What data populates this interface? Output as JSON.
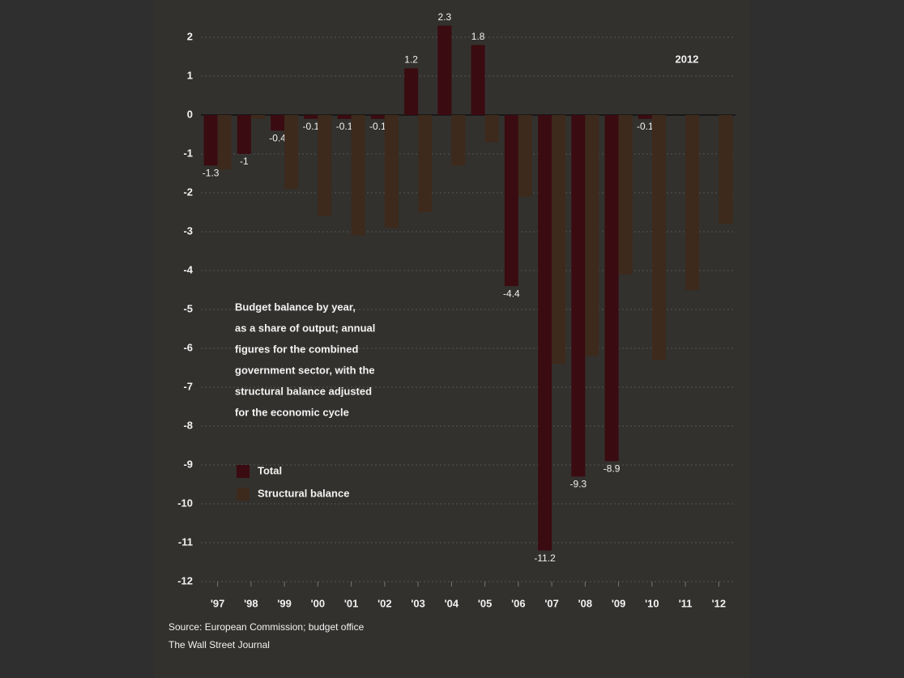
{
  "chart_data": {
    "type": "bar",
    "title": "2012",
    "annotation": [
      "Budget balance by year,",
      "as a share of output; annual",
      "figures for the combined",
      "government sector, with the",
      "structural balance adjusted",
      "for the economic cycle"
    ],
    "categories": [
      "'97",
      "'98",
      "'99",
      "'00",
      "'01",
      "'02",
      "'03",
      "'04",
      "'05",
      "'06",
      "'07",
      "'08",
      "'09",
      "'10",
      "'11",
      "'12"
    ],
    "series": [
      {
        "name": "Total",
        "color": "#3a0b10",
        "values": [
          -1.3,
          -1.0,
          -0.4,
          -0.1,
          -0.1,
          -0.1,
          1.2,
          2.3,
          1.8,
          -4.4,
          -11.2,
          -9.3,
          -8.9,
          -0.1,
          null,
          null
        ]
      },
      {
        "name": "Structural balance",
        "color": "#3d2a1c",
        "values": [
          -1.4,
          -0.1,
          -1.9,
          -2.6,
          -3.1,
          -2.9,
          -2.5,
          -1.3,
          -0.7,
          -2.1,
          -6.4,
          -6.2,
          -4.1,
          -6.3,
          -4.5,
          -2.8
        ]
      }
    ],
    "ylim": [
      -12,
      2
    ],
    "yticks": [
      -12,
      -11,
      -10,
      -9,
      -8,
      -7,
      -6,
      -5,
      -4,
      -3,
      -2,
      -1,
      0,
      1,
      2
    ],
    "grid": true,
    "source": [
      "Source: European Commission; budget office",
      "The Wall Street Journal"
    ]
  }
}
